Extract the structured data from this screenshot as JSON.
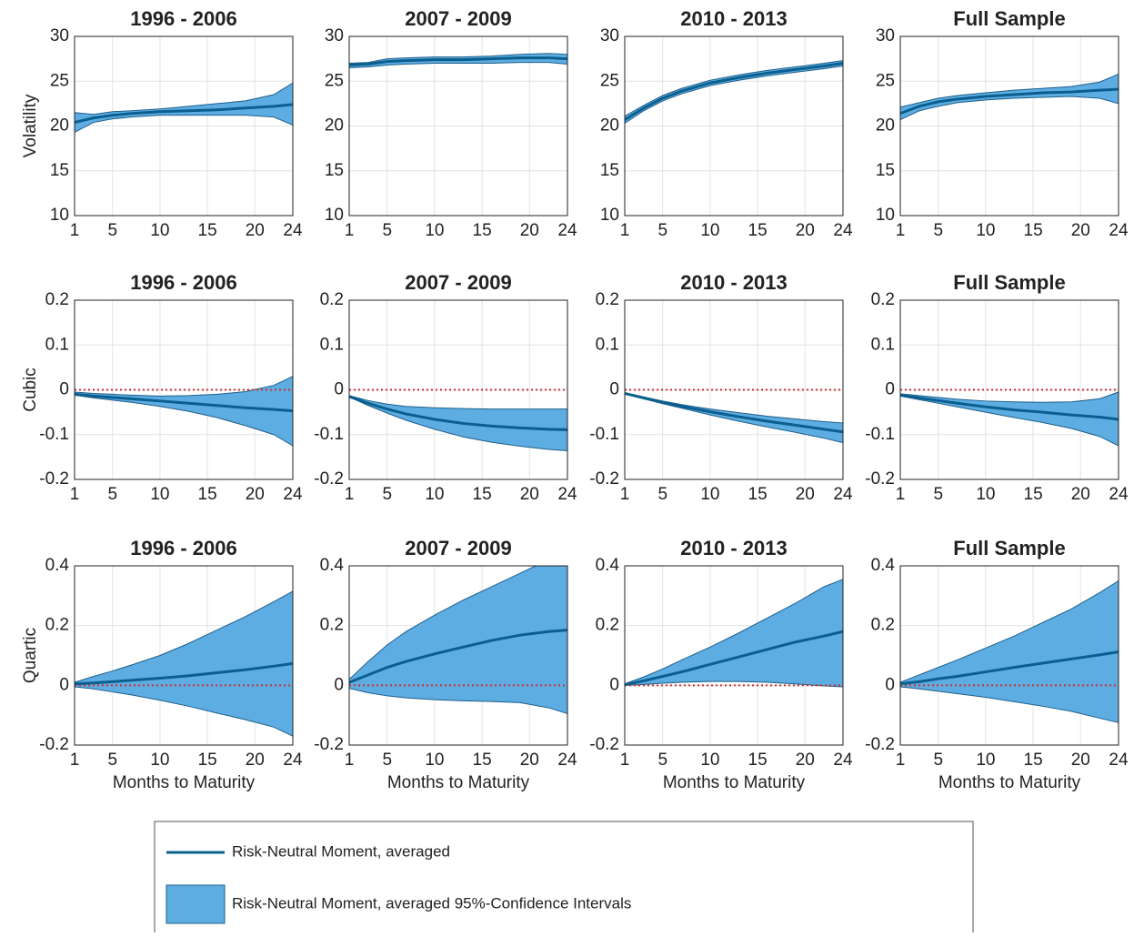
{
  "chart_data": [
    {
      "type": "line",
      "title": "1996 - 2006",
      "ylabel": "Volatility",
      "x": [
        1,
        3,
        5,
        7,
        10,
        13,
        16,
        19,
        22,
        24
      ],
      "xlim": [
        1,
        24
      ],
      "xticks": [
        1,
        5,
        10,
        15,
        20,
        24
      ],
      "ylim": [
        10,
        30
      ],
      "yticks": [
        10,
        15,
        20,
        25,
        30
      ],
      "grid": true,
      "series": [
        {
          "values": [
            20.4,
            20.9,
            21.2,
            21.4,
            21.6,
            21.7,
            21.8,
            22.0,
            22.2,
            22.4
          ],
          "color": "#0b5f8f"
        }
      ],
      "band": {
        "lower": [
          19.3,
          20.4,
          20.8,
          21.0,
          21.2,
          21.2,
          21.2,
          21.2,
          21.0,
          20.1
        ],
        "upper": [
          21.5,
          21.3,
          21.6,
          21.7,
          21.9,
          22.2,
          22.5,
          22.8,
          23.5,
          24.8
        ],
        "color": "#5dade2"
      }
    },
    {
      "type": "line",
      "title": "2007 - 2009",
      "x": [
        1,
        3,
        5,
        7,
        10,
        13,
        16,
        19,
        22,
        24
      ],
      "xlim": [
        1,
        24
      ],
      "xticks": [
        1,
        5,
        10,
        15,
        20,
        24
      ],
      "ylim": [
        10,
        30
      ],
      "yticks": [
        10,
        15,
        20,
        25,
        30
      ],
      "grid": true,
      "series": [
        {
          "values": [
            26.8,
            26.9,
            27.2,
            27.3,
            27.4,
            27.4,
            27.5,
            27.6,
            27.6,
            27.5
          ],
          "color": "#0b5f8f"
        }
      ],
      "band": {
        "lower": [
          26.5,
          26.6,
          26.8,
          26.9,
          27.0,
          27.0,
          27.0,
          27.1,
          27.1,
          26.9
        ],
        "upper": [
          27.0,
          27.1,
          27.5,
          27.6,
          27.7,
          27.7,
          27.8,
          28.0,
          28.1,
          28.0
        ],
        "color": "#5dade2"
      }
    },
    {
      "type": "line",
      "title": "2010 - 2013",
      "x": [
        1,
        3,
        5,
        7,
        10,
        13,
        16,
        19,
        22,
        24
      ],
      "xlim": [
        1,
        24
      ],
      "xticks": [
        1,
        5,
        10,
        15,
        20,
        24
      ],
      "ylim": [
        10,
        30
      ],
      "yticks": [
        10,
        15,
        20,
        25,
        30
      ],
      "grid": true,
      "series": [
        {
          "values": [
            20.7,
            22.0,
            23.1,
            23.9,
            24.8,
            25.4,
            25.9,
            26.3,
            26.7,
            27.0
          ],
          "color": "#0b5f8f"
        }
      ],
      "band": {
        "lower": [
          20.3,
          21.7,
          22.8,
          23.6,
          24.5,
          25.1,
          25.6,
          26.0,
          26.4,
          26.7
        ],
        "upper": [
          21.1,
          22.3,
          23.4,
          24.2,
          25.1,
          25.7,
          26.2,
          26.6,
          27.0,
          27.3
        ],
        "color": "#5dade2"
      }
    },
    {
      "type": "line",
      "title": "Full Sample",
      "x": [
        1,
        3,
        5,
        7,
        10,
        13,
        16,
        19,
        22,
        24
      ],
      "xlim": [
        1,
        24
      ],
      "xticks": [
        1,
        5,
        10,
        15,
        20,
        24
      ],
      "ylim": [
        10,
        30
      ],
      "yticks": [
        10,
        15,
        20,
        25,
        30
      ],
      "grid": true,
      "series": [
        {
          "values": [
            21.4,
            22.2,
            22.7,
            23.0,
            23.3,
            23.5,
            23.7,
            23.8,
            24.0,
            24.1
          ],
          "color": "#0b5f8f"
        }
      ],
      "band": {
        "lower": [
          20.7,
          21.7,
          22.2,
          22.6,
          22.9,
          23.1,
          23.2,
          23.3,
          23.1,
          22.5
        ],
        "upper": [
          22.1,
          22.6,
          23.1,
          23.4,
          23.7,
          24.0,
          24.2,
          24.4,
          24.9,
          25.8
        ],
        "color": "#5dade2"
      }
    },
    {
      "type": "line",
      "title": "1996 - 2006",
      "ylabel": "Cubic",
      "x": [
        1,
        3,
        5,
        7,
        10,
        13,
        16,
        19,
        22,
        24
      ],
      "xlim": [
        1,
        24
      ],
      "xticks": [
        1,
        5,
        10,
        15,
        20,
        24
      ],
      "ylim": [
        -0.2,
        0.2
      ],
      "yticks": [
        -0.2,
        -0.1,
        0,
        0.1,
        0.2
      ],
      "grid": true,
      "hline": {
        "value": 0,
        "color": "#d03030"
      },
      "series": [
        {
          "values": [
            -0.01,
            -0.014,
            -0.017,
            -0.02,
            -0.025,
            -0.03,
            -0.035,
            -0.04,
            -0.044,
            -0.047
          ],
          "color": "#0b5f8f"
        }
      ],
      "band": {
        "lower": [
          -0.012,
          -0.018,
          -0.023,
          -0.028,
          -0.037,
          -0.048,
          -0.062,
          -0.08,
          -0.1,
          -0.125
        ],
        "upper": [
          -0.005,
          -0.008,
          -0.01,
          -0.012,
          -0.014,
          -0.013,
          -0.01,
          -0.004,
          0.01,
          0.03
        ],
        "color": "#5dade2"
      }
    },
    {
      "type": "line",
      "title": "2007 - 2009",
      "x": [
        1,
        3,
        5,
        7,
        10,
        13,
        16,
        19,
        22,
        24
      ],
      "xlim": [
        1,
        24
      ],
      "xticks": [
        1,
        5,
        10,
        15,
        20,
        24
      ],
      "ylim": [
        -0.2,
        0.2
      ],
      "yticks": [
        -0.2,
        -0.1,
        0,
        0.1,
        0.2
      ],
      "grid": true,
      "hline": {
        "value": 0,
        "color": "#d03030"
      },
      "series": [
        {
          "values": [
            -0.015,
            -0.03,
            -0.043,
            -0.054,
            -0.066,
            -0.075,
            -0.081,
            -0.085,
            -0.088,
            -0.089
          ],
          "color": "#0b5f8f"
        }
      ],
      "band": {
        "lower": [
          -0.016,
          -0.035,
          -0.052,
          -0.068,
          -0.088,
          -0.105,
          -0.117,
          -0.126,
          -0.133,
          -0.136
        ],
        "upper": [
          -0.013,
          -0.024,
          -0.032,
          -0.037,
          -0.04,
          -0.042,
          -0.043,
          -0.043,
          -0.043,
          -0.043
        ],
        "color": "#5dade2"
      }
    },
    {
      "type": "line",
      "title": "2010 - 2013",
      "x": [
        1,
        3,
        5,
        7,
        10,
        13,
        16,
        19,
        22,
        24
      ],
      "xlim": [
        1,
        24
      ],
      "xticks": [
        1,
        5,
        10,
        15,
        20,
        24
      ],
      "ylim": [
        -0.2,
        0.2
      ],
      "yticks": [
        -0.2,
        -0.1,
        0,
        0.1,
        0.2
      ],
      "grid": true,
      "hline": {
        "value": 0,
        "color": "#d03030"
      },
      "series": [
        {
          "values": [
            -0.008,
            -0.018,
            -0.028,
            -0.037,
            -0.049,
            -0.06,
            -0.07,
            -0.079,
            -0.088,
            -0.094
          ],
          "color": "#0b5f8f"
        }
      ],
      "band": {
        "lower": [
          -0.009,
          -0.02,
          -0.031,
          -0.041,
          -0.056,
          -0.07,
          -0.083,
          -0.095,
          -0.108,
          -0.118
        ],
        "upper": [
          -0.007,
          -0.016,
          -0.025,
          -0.033,
          -0.043,
          -0.051,
          -0.059,
          -0.065,
          -0.071,
          -0.074
        ],
        "color": "#5dade2"
      }
    },
    {
      "type": "line",
      "title": "Full Sample",
      "x": [
        1,
        3,
        5,
        7,
        10,
        13,
        16,
        19,
        22,
        24
      ],
      "xlim": [
        1,
        24
      ],
      "xticks": [
        1,
        5,
        10,
        15,
        20,
        24
      ],
      "ylim": [
        -0.2,
        0.2
      ],
      "yticks": [
        -0.2,
        -0.1,
        0,
        0.1,
        0.2
      ],
      "grid": true,
      "hline": {
        "value": 0,
        "color": "#d03030"
      },
      "series": [
        {
          "values": [
            -0.012,
            -0.018,
            -0.024,
            -0.03,
            -0.038,
            -0.045,
            -0.05,
            -0.056,
            -0.061,
            -0.066
          ],
          "color": "#0b5f8f"
        }
      ],
      "band": {
        "lower": [
          -0.014,
          -0.022,
          -0.03,
          -0.038,
          -0.05,
          -0.062,
          -0.073,
          -0.086,
          -0.104,
          -0.125
        ],
        "upper": [
          -0.009,
          -0.013,
          -0.017,
          -0.021,
          -0.025,
          -0.027,
          -0.028,
          -0.027,
          -0.02,
          -0.005
        ],
        "color": "#5dade2"
      }
    },
    {
      "type": "line",
      "title": "1996 - 2006",
      "ylabel": "Quartic",
      "xlabel": "Months to Maturity",
      "x": [
        1,
        3,
        5,
        7,
        10,
        13,
        16,
        19,
        22,
        24
      ],
      "xlim": [
        1,
        24
      ],
      "xticks": [
        1,
        5,
        10,
        15,
        20,
        24
      ],
      "ylim": [
        -0.2,
        0.4
      ],
      "yticks": [
        -0.2,
        0,
        0.2,
        0.4
      ],
      "grid": true,
      "hline": {
        "value": 0,
        "color": "#d03030"
      },
      "series": [
        {
          "values": [
            0.005,
            0.008,
            0.012,
            0.017,
            0.024,
            0.032,
            0.042,
            0.052,
            0.064,
            0.073
          ],
          "color": "#0b5f8f"
        }
      ],
      "band": {
        "lower": [
          -0.005,
          -0.012,
          -0.022,
          -0.032,
          -0.05,
          -0.07,
          -0.093,
          -0.115,
          -0.14,
          -0.17
        ],
        "upper": [
          0.01,
          0.03,
          0.048,
          0.068,
          0.1,
          0.14,
          0.185,
          0.23,
          0.28,
          0.315
        ],
        "color": "#5dade2"
      }
    },
    {
      "type": "line",
      "title": "2007 - 2009",
      "xlabel": "Months to Maturity",
      "x": [
        1,
        3,
        5,
        7,
        10,
        13,
        16,
        19,
        22,
        24
      ],
      "xlim": [
        1,
        24
      ],
      "xticks": [
        1,
        5,
        10,
        15,
        20,
        24
      ],
      "ylim": [
        -0.2,
        0.4
      ],
      "yticks": [
        -0.2,
        0,
        0.2,
        0.4
      ],
      "grid": true,
      "hline": {
        "value": 0,
        "color": "#d03030"
      },
      "series": [
        {
          "values": [
            0.01,
            0.035,
            0.06,
            0.08,
            0.105,
            0.128,
            0.15,
            0.168,
            0.18,
            0.185
          ],
          "color": "#0b5f8f"
        }
      ],
      "band": {
        "lower": [
          -0.01,
          -0.025,
          -0.035,
          -0.042,
          -0.048,
          -0.052,
          -0.054,
          -0.058,
          -0.075,
          -0.095
        ],
        "upper": [
          0.02,
          0.08,
          0.135,
          0.18,
          0.235,
          0.285,
          0.33,
          0.375,
          0.42,
          0.44
        ],
        "color": "#5dade2"
      }
    },
    {
      "type": "line",
      "title": "2010 - 2013",
      "xlabel": "Months to Maturity",
      "x": [
        1,
        3,
        5,
        7,
        10,
        13,
        16,
        19,
        22,
        24
      ],
      "xlim": [
        1,
        24
      ],
      "xticks": [
        1,
        5,
        10,
        15,
        20,
        24
      ],
      "ylim": [
        -0.2,
        0.4
      ],
      "yticks": [
        -0.2,
        0,
        0.2,
        0.4
      ],
      "grid": true,
      "hline": {
        "value": 0,
        "color": "#d03030"
      },
      "series": [
        {
          "values": [
            0.002,
            0.015,
            0.03,
            0.045,
            0.07,
            0.095,
            0.12,
            0.145,
            0.165,
            0.18
          ],
          "color": "#0b5f8f"
        }
      ],
      "band": {
        "lower": [
          0,
          0.003,
          0.007,
          0.01,
          0.013,
          0.013,
          0.01,
          0.005,
          -0.002,
          -0.005
        ],
        "upper": [
          0.005,
          0.028,
          0.055,
          0.085,
          0.128,
          0.175,
          0.225,
          0.275,
          0.33,
          0.355
        ],
        "color": "#5dade2"
      }
    },
    {
      "type": "line",
      "title": "Full Sample",
      "xlabel": "Months to Maturity",
      "x": [
        1,
        3,
        5,
        7,
        10,
        13,
        16,
        19,
        22,
        24
      ],
      "xlim": [
        1,
        24
      ],
      "xticks": [
        1,
        5,
        10,
        15,
        20,
        24
      ],
      "ylim": [
        -0.2,
        0.4
      ],
      "yticks": [
        -0.2,
        0,
        0.2,
        0.4
      ],
      "grid": true,
      "hline": {
        "value": 0,
        "color": "#d03030"
      },
      "series": [
        {
          "values": [
            0.005,
            0.012,
            0.022,
            0.03,
            0.045,
            0.06,
            0.074,
            0.088,
            0.102,
            0.112
          ],
          "color": "#0b5f8f"
        }
      ],
      "band": {
        "lower": [
          -0.005,
          -0.012,
          -0.02,
          -0.028,
          -0.04,
          -0.055,
          -0.07,
          -0.087,
          -0.11,
          -0.125
        ],
        "upper": [
          0.01,
          0.035,
          0.06,
          0.085,
          0.125,
          0.165,
          0.21,
          0.255,
          0.31,
          0.35
        ],
        "color": "#5dade2"
      }
    }
  ],
  "legend": [
    {
      "label": "Risk-Neutral Moment, averaged",
      "color": "#0b5f8f",
      "style": "line"
    },
    {
      "label": "Risk-Neutral Moment, averaged 95%-Confidence Intervals",
      "color": "#5dade2",
      "style": "band"
    }
  ]
}
